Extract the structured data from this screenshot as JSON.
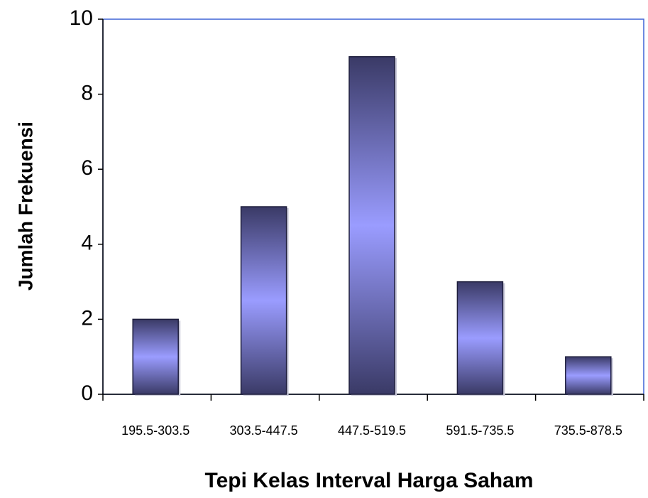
{
  "chart_data": {
    "type": "bar",
    "xlabel": "Tepi Kelas Interval Harga Saham",
    "ylabel": "Jumlah Frekuensi",
    "categories": [
      "195.5-303.5",
      "303.5-447.5",
      "447.5-519.5",
      "591.5-735.5",
      "735.5-878.5"
    ],
    "values": [
      2,
      5,
      9,
      3,
      1
    ],
    "color": "#9a9cff",
    "ylim": [
      0,
      10
    ],
    "yticks": [
      0,
      2,
      4,
      6,
      8,
      10
    ],
    "grid": false
  }
}
